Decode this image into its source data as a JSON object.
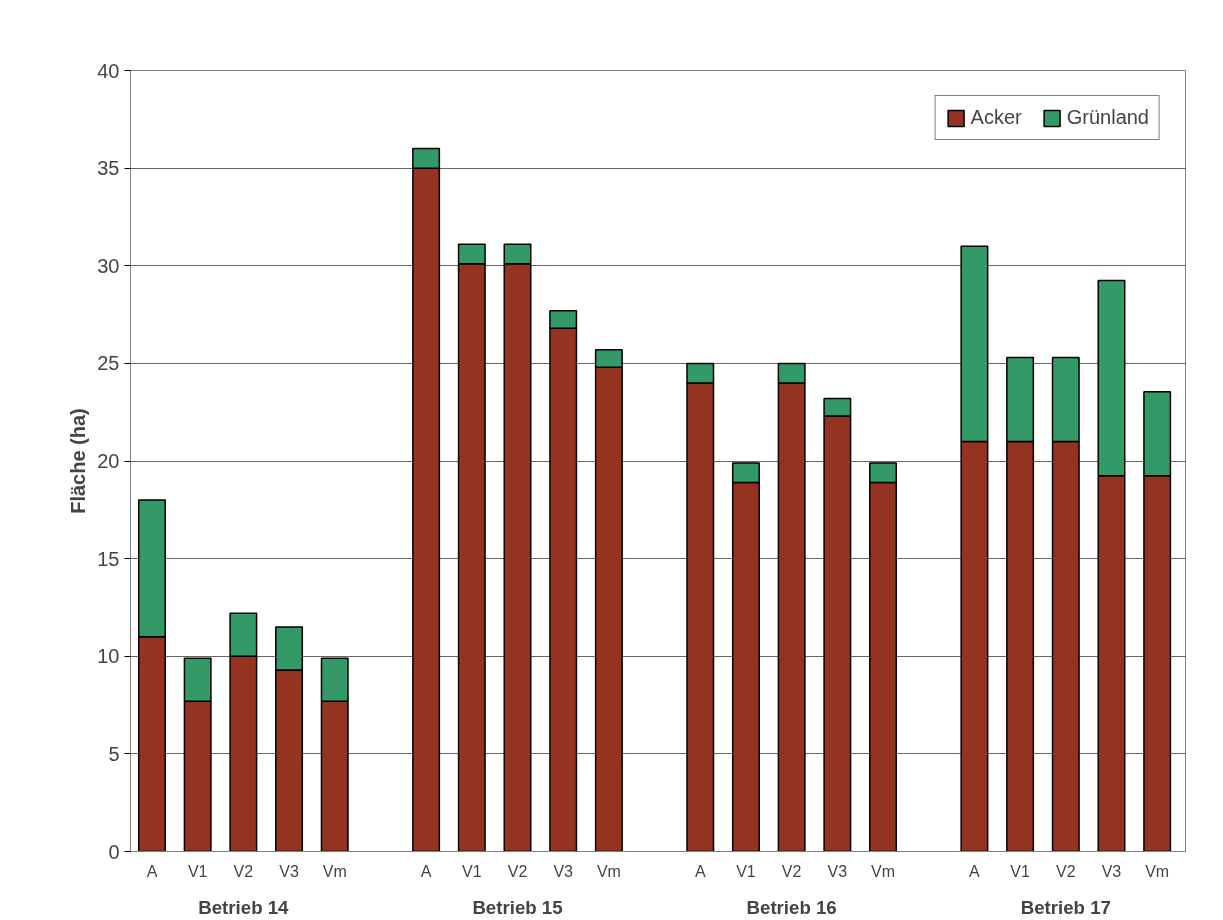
{
  "chart_data": {
    "type": "bar",
    "stacked": true,
    "ylabel": "Fläche (ha)",
    "categories": [
      "A",
      "V1",
      "V2",
      "V3",
      "Vm",
      "A",
      "V1",
      "V2",
      "V3",
      "Vm",
      "A",
      "V1",
      "V2",
      "V3",
      "Vm",
      "A",
      "V1",
      "V2",
      "V3",
      "Vm"
    ],
    "series": [
      {
        "name": "Acker",
        "color": "#943420",
        "values": [
          11.0,
          7.7,
          10.0,
          9.3,
          7.7,
          35.0,
          30.1,
          30.1,
          26.8,
          24.8,
          24.0,
          18.9,
          24.0,
          22.3,
          18.9,
          21.0,
          21.0,
          21.0,
          19.25,
          19.25
        ]
      },
      {
        "name": "Grünland",
        "color": "#339966",
        "values": [
          7.0,
          2.2,
          2.2,
          2.2,
          2.2,
          1.0,
          1.0,
          1.0,
          0.9,
          0.9,
          1.0,
          1.0,
          1.0,
          0.9,
          1.0,
          10.0,
          4.3,
          4.3,
          10.0,
          4.3
        ]
      }
    ],
    "annotations": [
      "Betrieb 14",
      "Betrieb 15",
      "Betrieb 16",
      "Betrieb 17"
    ],
    "ylim": [
      0,
      40
    ],
    "yticks": [
      0,
      5,
      10,
      15,
      20,
      25,
      30,
      35,
      40
    ],
    "grid": "y",
    "legend": "top right"
  }
}
